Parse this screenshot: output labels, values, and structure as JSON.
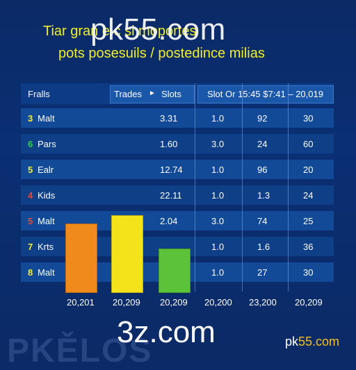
{
  "header": {
    "line1": "Tiar gran       e.c   si      moportes",
    "line2": "pots posesuils / postedince milias"
  },
  "watermarks": {
    "top": "pk55.com",
    "bottom": "3z.com",
    "right_prefix": "pk",
    "right_suffix": "55.com",
    "faint": "PKĚLOS"
  },
  "table": {
    "header": {
      "col1": "Fralls",
      "col2": "Trades",
      "arrow": "►",
      "col3": "Slots",
      "col4": "Slot Or 15:45 $7:41 – 20,019"
    },
    "rows": [
      {
        "rank": "3",
        "rank_color": "#f2ef2a",
        "name": "Malt",
        "slots": "3.31",
        "a": "1.0",
        "b": "92",
        "c": "30"
      },
      {
        "rank": "6",
        "rank_color": "#35d04a",
        "name": "Pars",
        "slots": "1.60",
        "a": "3.0",
        "b": "24",
        "c": "60"
      },
      {
        "rank": "5",
        "rank_color": "#f2ef2a",
        "name": "Ealr",
        "slots": "12.74",
        "a": "1.0",
        "b": "96",
        "c": "20"
      },
      {
        "rank": "4",
        "rank_color": "#e64a2e",
        "name": "Kids",
        "slots": "22.11",
        "a": "1.0",
        "b": "1.3",
        "c": "24"
      },
      {
        "rank": "5",
        "rank_color": "#e64a2e",
        "name": "Malt",
        "slots": "2.04",
        "a": "3.0",
        "b": "74",
        "c": "25"
      },
      {
        "rank": "7",
        "rank_color": "#f2ef2a",
        "name": "Krts",
        "slots": "",
        "a": "1.0",
        "b": "1.6",
        "c": "36"
      },
      {
        "rank": "8",
        "rank_color": "#f2ef2a",
        "name": "Malt",
        "slots": "",
        "a": "1.0",
        "b": "27",
        "c": "30"
      }
    ]
  },
  "bars": [
    {
      "color": "#f08a1c"
    },
    {
      "color": "#f4e21a"
    },
    {
      "color": "#5cc23a"
    }
  ],
  "x_labels": [
    "20,201",
    "20,209",
    "20,209",
    "20,200",
    "23,200",
    "20,209"
  ]
}
